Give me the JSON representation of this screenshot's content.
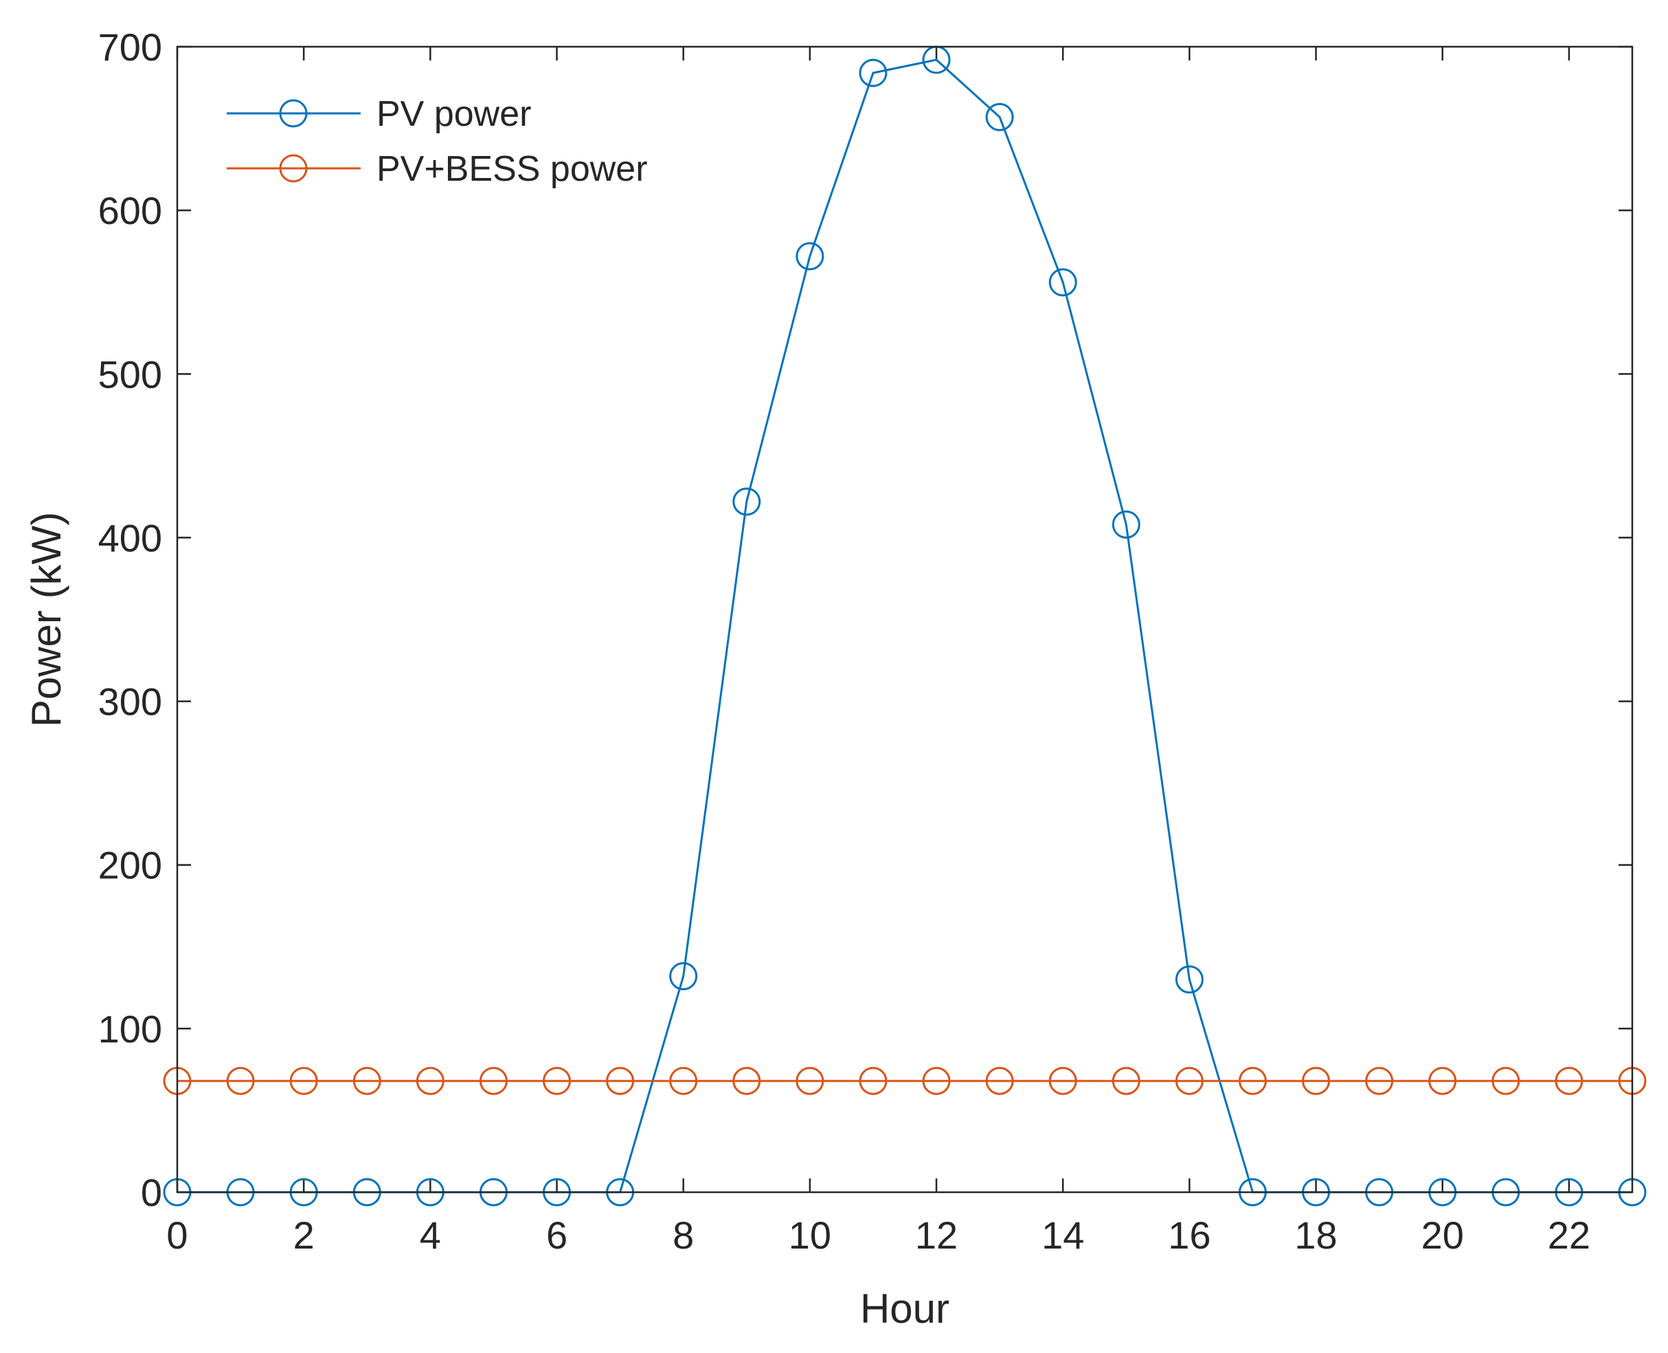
{
  "chart_data": {
    "type": "line",
    "title": "",
    "xlabel": "Hour",
    "ylabel": "Power (kW)",
    "xlim": [
      0,
      23
    ],
    "ylim": [
      0,
      700
    ],
    "xticks": [
      0,
      2,
      4,
      6,
      8,
      10,
      12,
      14,
      16,
      18,
      20,
      22
    ],
    "yticks": [
      0,
      100,
      200,
      300,
      400,
      500,
      600,
      700
    ],
    "grid": false,
    "legend_position": "top-left",
    "x": [
      0,
      1,
      2,
      3,
      4,
      5,
      6,
      7,
      8,
      9,
      10,
      11,
      12,
      13,
      14,
      15,
      16,
      17,
      18,
      19,
      20,
      21,
      22,
      23
    ],
    "series": [
      {
        "name": "PV power",
        "color": "#0072BD",
        "marker": "circle",
        "values": [
          0,
          0,
          0,
          0,
          0,
          0,
          0,
          0,
          132,
          422,
          572,
          684,
          692,
          657,
          556,
          408,
          130,
          0,
          0,
          0,
          0,
          0,
          0,
          0
        ]
      },
      {
        "name": "PV+BESS power",
        "color": "#D95319",
        "marker": "circle",
        "values": [
          68,
          68,
          68,
          68,
          68,
          68,
          68,
          68,
          68,
          68,
          68,
          68,
          68,
          68,
          68,
          68,
          68,
          68,
          68,
          68,
          68,
          68,
          68,
          68
        ]
      }
    ]
  }
}
